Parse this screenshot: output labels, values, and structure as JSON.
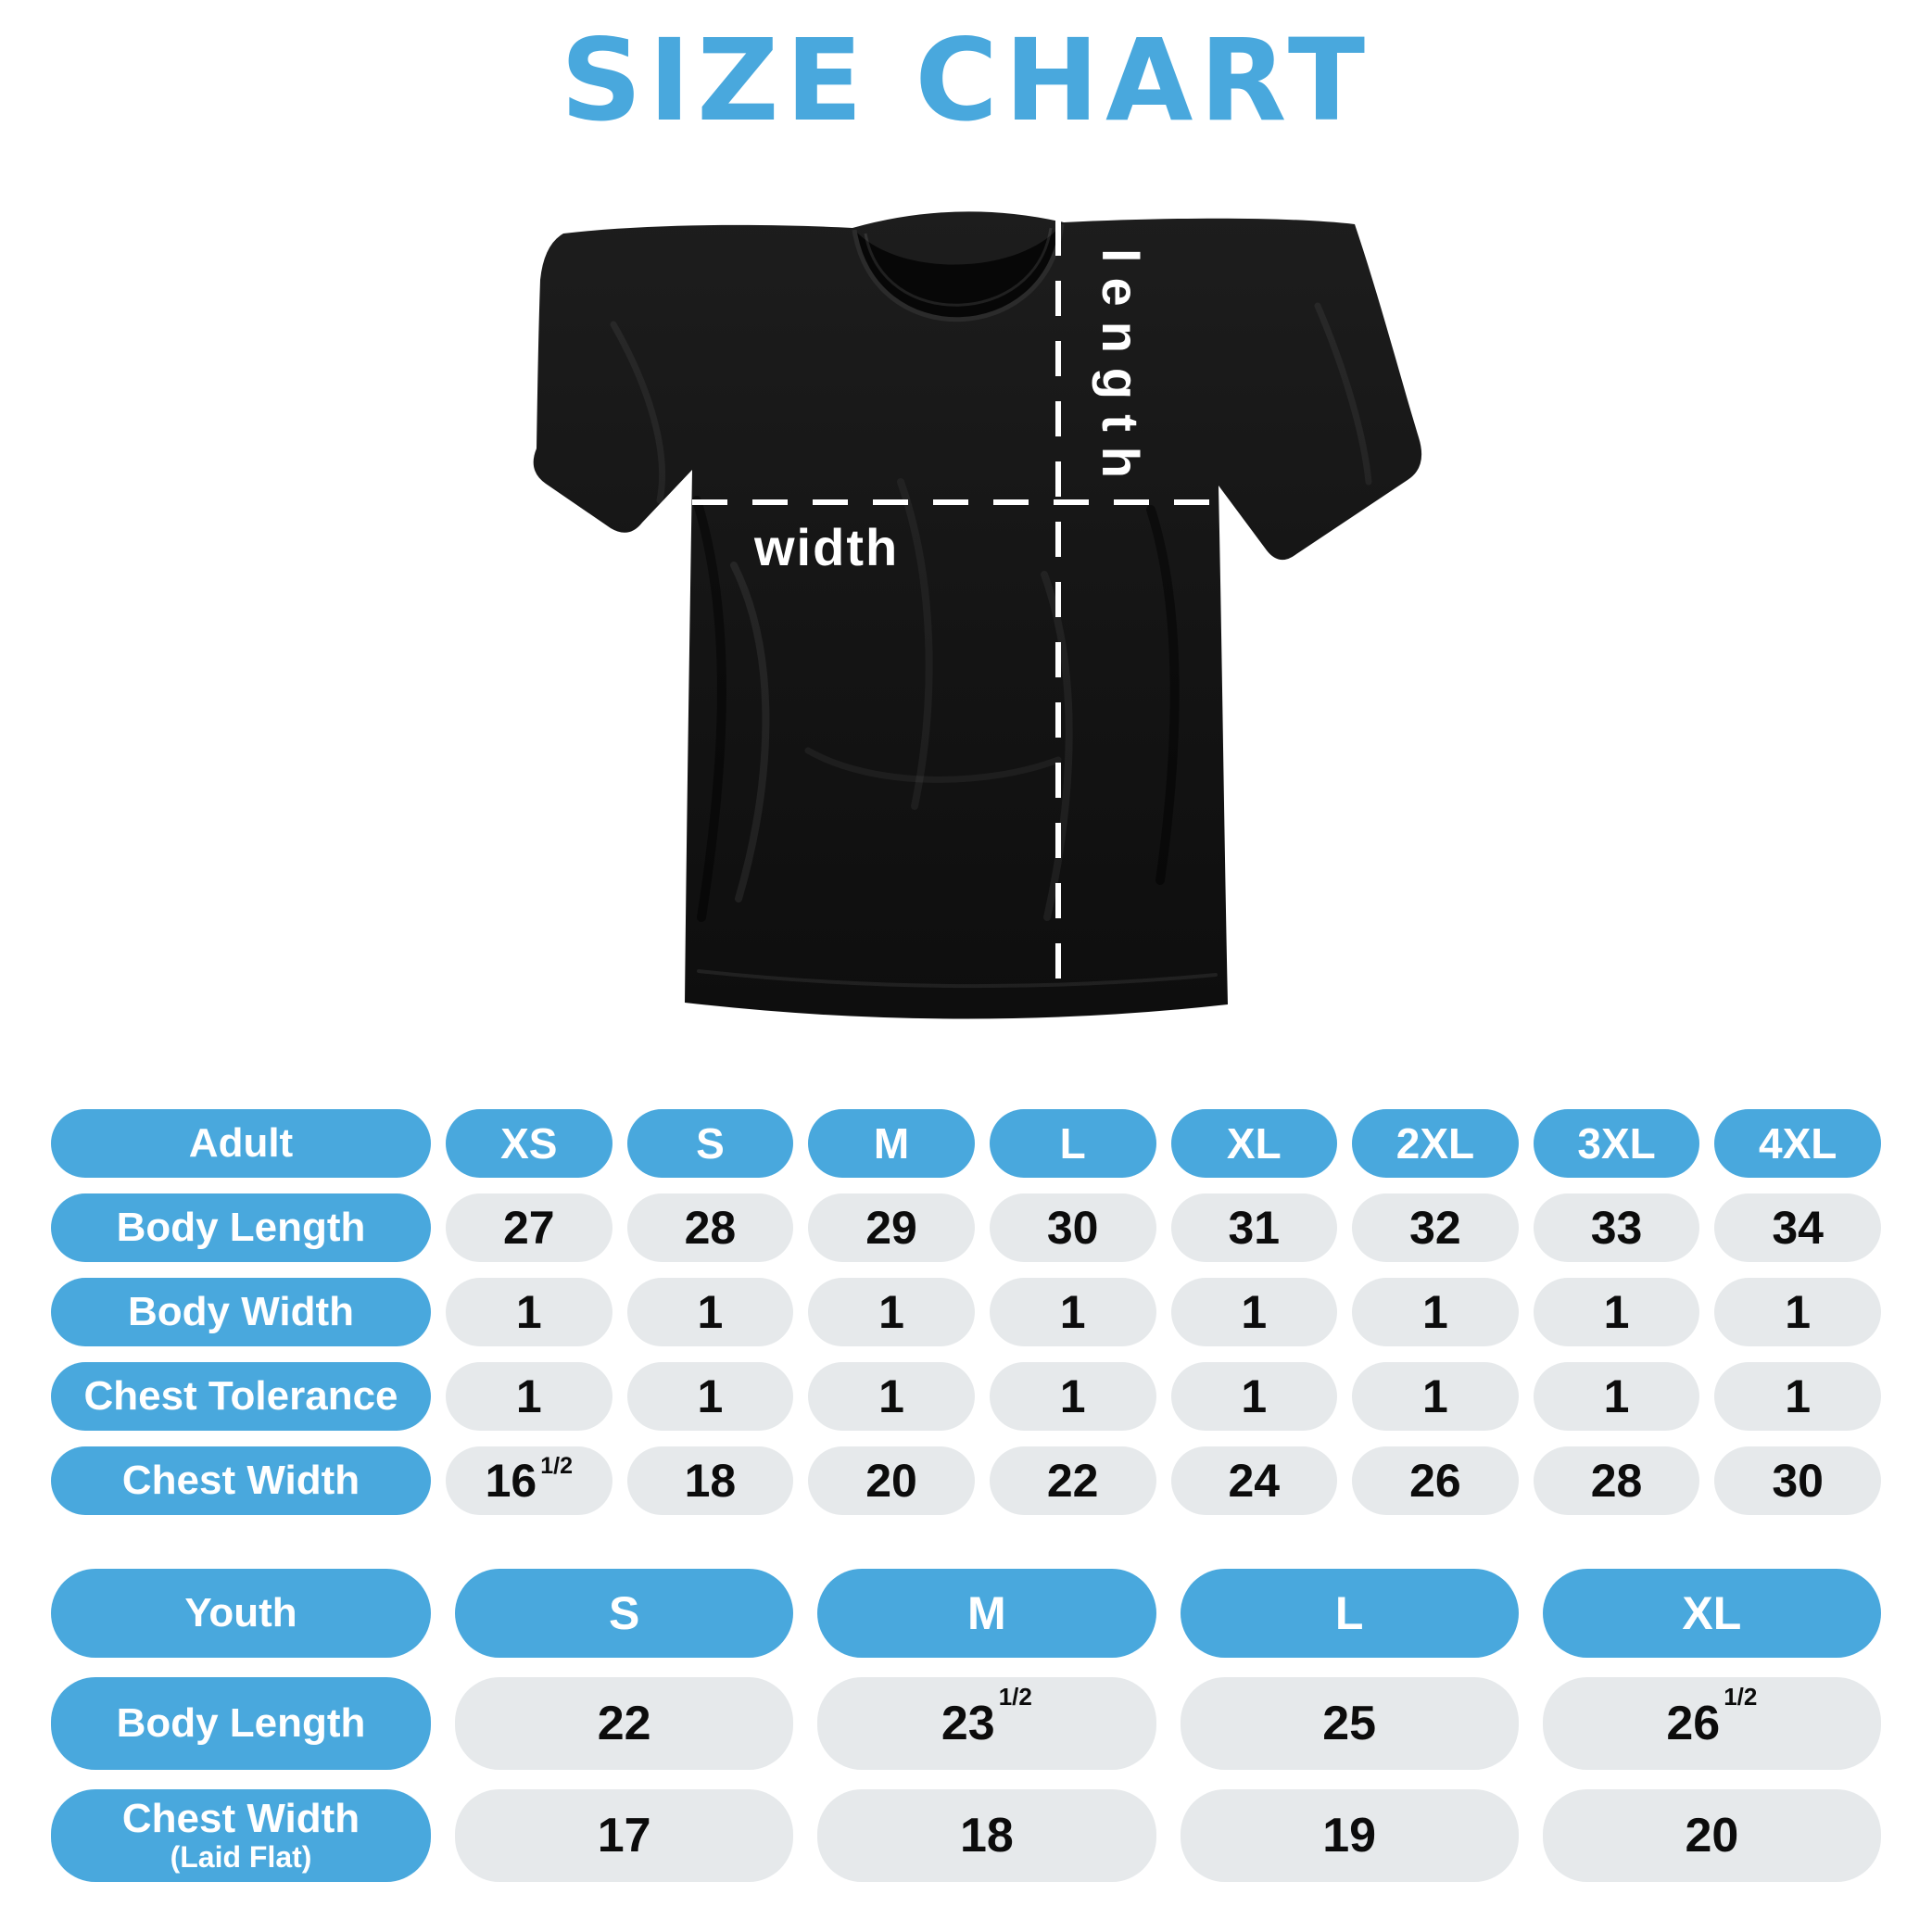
{
  "title": "SIZE CHART",
  "accent_color": "#49A8DD",
  "pill_gray_color": "#E6E9EB",
  "shirt": {
    "length_label": "length",
    "width_label": "width",
    "fabric_color": "#141414"
  },
  "chart_data": [
    {
      "type": "table",
      "name": "adult_sizes",
      "header": [
        "Adult",
        "XS",
        "S",
        "M",
        "L",
        "XL",
        "2XL",
        "3XL",
        "4XL"
      ],
      "rows": [
        {
          "label": "Body Length",
          "values": [
            "27",
            "28",
            "29",
            "30",
            "31",
            "32",
            "33",
            "34"
          ]
        },
        {
          "label": "Body Width",
          "values": [
            "1",
            "1",
            "1",
            "1",
            "1",
            "1",
            "1",
            "1"
          ]
        },
        {
          "label": "Chest Tolerance",
          "values": [
            "1",
            "1",
            "1",
            "1",
            "1",
            "1",
            "1",
            "1"
          ]
        },
        {
          "label": "Chest Width",
          "values": [
            "16½",
            "18",
            "20",
            "22",
            "24",
            "26",
            "28",
            "30"
          ]
        }
      ]
    },
    {
      "type": "table",
      "name": "youth_sizes",
      "header": [
        "Youth",
        "S",
        "M",
        "L",
        "XL"
      ],
      "rows": [
        {
          "label": "Body Length",
          "sublabel": "",
          "values": [
            "22",
            "23½",
            "25",
            "26½"
          ]
        },
        {
          "label": "Chest Width",
          "sublabel": "(Laid Flat)",
          "values": [
            "17",
            "18",
            "19",
            "20"
          ]
        }
      ]
    }
  ]
}
